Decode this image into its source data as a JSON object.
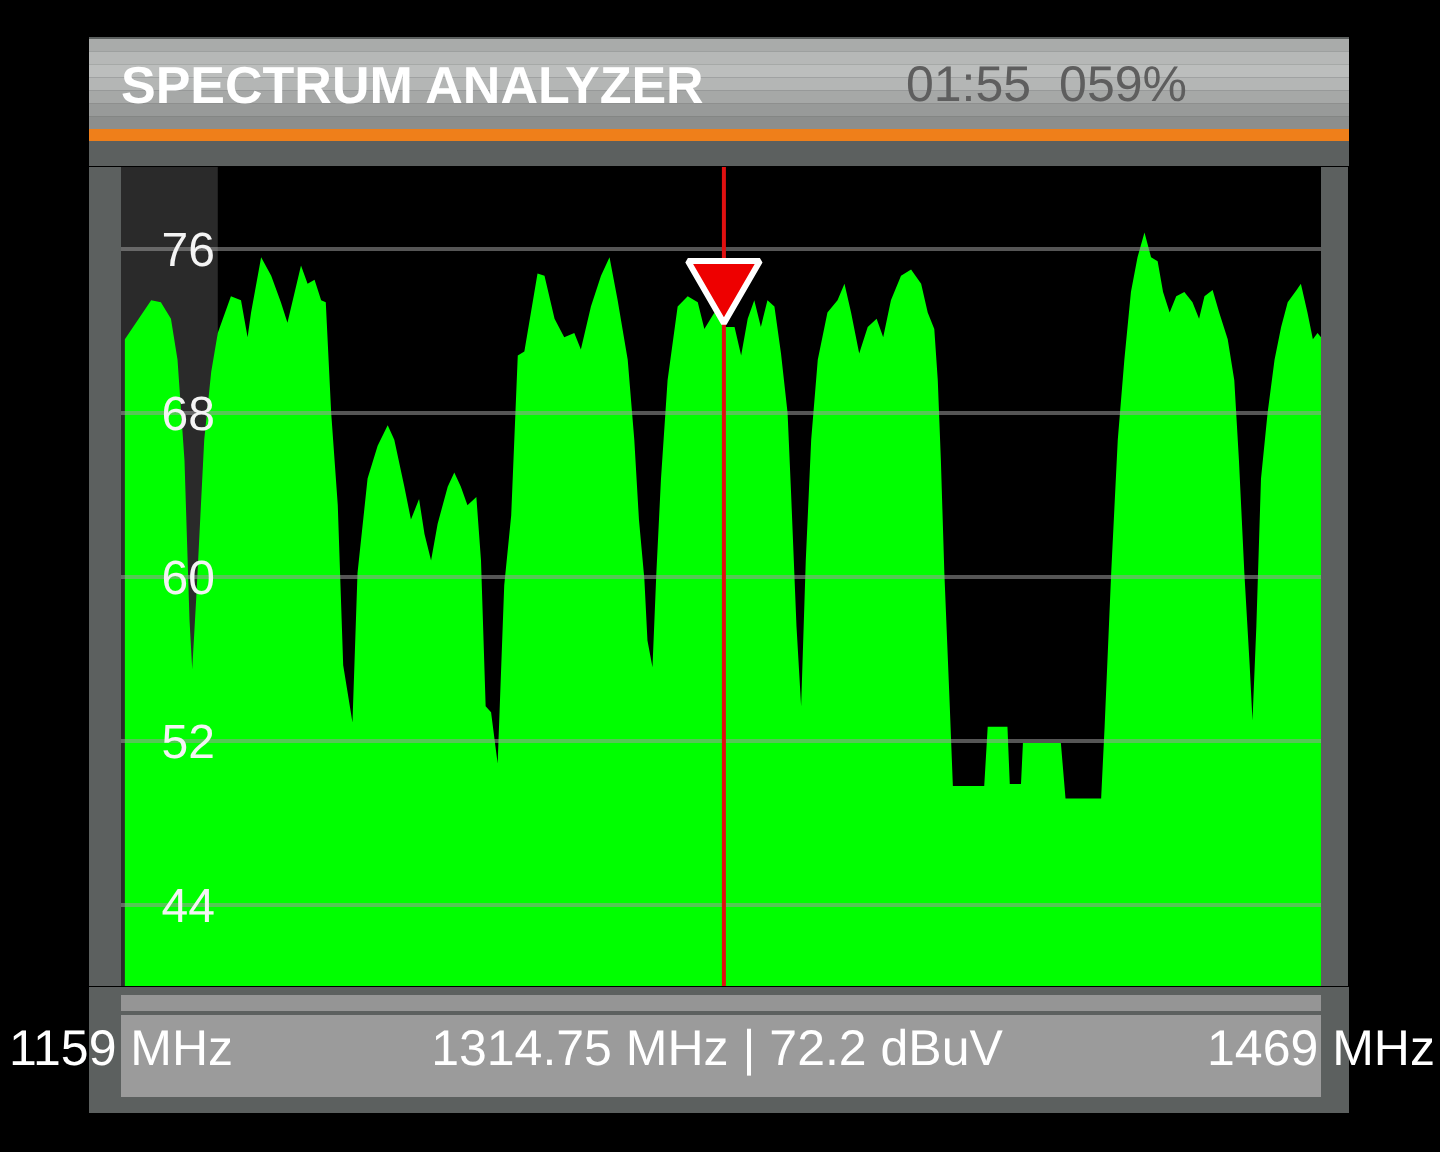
{
  "chart_data": {
    "type": "area",
    "title": "SPECTRUM ANALYZER",
    "annotations": [
      "01:55",
      "059%",
      "1314.75 MHz | 72.2 dBuV"
    ],
    "x": [
      1160.0,
      1166.8,
      1169.3,
      1171.9,
      1173.6,
      1175.4,
      1176.7,
      1177.4,
      1178.5,
      1180.5,
      1182.3,
      1184.0,
      1187.4,
      1190.0,
      1191.7,
      1192.6,
      1195.2,
      1197.8,
      1200.3,
      1202.0,
      1205.5,
      1207.2,
      1209.0,
      1210.7,
      1211.9,
      1213.3,
      1215.0,
      1216.4,
      1218.8,
      1220.1,
      1222.7,
      1225.3,
      1227.9,
      1229.6,
      1232.2,
      1233.9,
      1236.0,
      1237.4,
      1239.1,
      1240.8,
      1243.4,
      1245.1,
      1246.8,
      1248.5,
      1250.8,
      1252.0,
      1253.2,
      1254.6,
      1256.3,
      1258.0,
      1259.8,
      1261.5,
      1263.2,
      1266.6,
      1268.4,
      1271.0,
      1273.5,
      1276.1,
      1277.8,
      1280.4,
      1283.0,
      1285.2,
      1287.3,
      1289.9,
      1291.6,
      1292.8,
      1294.2,
      1295.0,
      1296.3,
      1297.3,
      1298.5,
      1300.2,
      1302.8,
      1305.4,
      1308.0,
      1309.7,
      1312.3,
      1314.75,
      1317.5,
      1319.2,
      1320.9,
      1322.6,
      1324.3,
      1326.0,
      1327.8,
      1329.5,
      1331.2,
      1332.1,
      1333.5,
      1334.7,
      1335.9,
      1337.3,
      1339.0,
      1341.5,
      1344.1,
      1345.9,
      1347.6,
      1349.7,
      1351.9,
      1354.2,
      1355.9,
      1357.9,
      1360.5,
      1363.1,
      1365.7,
      1367.4,
      1369.1,
      1370.0,
      1370.8,
      1371.7,
      1373.1,
      1373.9,
      1382.0,
      1382.9,
      1388.0,
      1388.6,
      1391.5,
      1392.0,
      1401.8,
      1403.0,
      1412.2,
      1413.1,
      1414.8,
      1416.5,
      1418.2,
      1419.9,
      1421.6,
      1423.4,
      1425.1,
      1426.8,
      1428.2,
      1429.9,
      1431.6,
      1433.7,
      1435.8,
      1437.5,
      1438.9,
      1441.0,
      1442.7,
      1444.9,
      1446.6,
      1447.8,
      1449.2,
      1450.6,
      1451.3,
      1452.3,
      1453.5,
      1455.2,
      1457.0,
      1458.7,
      1460.4,
      1462.7,
      1463.8,
      1465.5,
      1466.9,
      1468.1,
      1469.0
    ],
    "series": [
      {
        "color": "#00ff00",
        "values": [
          71.6,
          73.5,
          73.4,
          72.6,
          70.6,
          65.7,
          57.9,
          55.5,
          59.2,
          66.7,
          70.0,
          71.9,
          73.7,
          73.5,
          71.7,
          72.9,
          75.6,
          74.7,
          73.4,
          72.4,
          75.2,
          74.3,
          74.5,
          73.5,
          73.4,
          68.0,
          63.5,
          55.7,
          52.9,
          60.2,
          64.8,
          66.4,
          67.4,
          66.7,
          64.4,
          62.8,
          63.8,
          62.1,
          60.8,
          62.6,
          64.4,
          65.1,
          64.4,
          63.5,
          63.9,
          60.8,
          53.7,
          53.4,
          50.9,
          59.6,
          63.0,
          70.8,
          71.0,
          74.8,
          74.7,
          72.6,
          71.7,
          71.9,
          71.1,
          73.2,
          74.7,
          75.6,
          73.5,
          70.6,
          66.7,
          62.8,
          59.9,
          56.9,
          55.6,
          60.2,
          64.8,
          69.6,
          73.2,
          73.7,
          73.4,
          72.1,
          72.9,
          72.2,
          72.2,
          70.8,
          72.6,
          73.5,
          72.2,
          73.5,
          73.2,
          70.9,
          68.0,
          64.1,
          57.6,
          53.7,
          60.8,
          66.7,
          70.6,
          72.9,
          73.5,
          74.3,
          72.9,
          70.9,
          72.2,
          72.6,
          71.7,
          73.5,
          74.7,
          75.0,
          74.3,
          72.9,
          72.1,
          69.6,
          65.7,
          60.2,
          53.7,
          49.8,
          49.8,
          52.7,
          52.7,
          49.9,
          49.9,
          51.9,
          51.9,
          49.2,
          49.2,
          52.7,
          60.2,
          66.7,
          70.6,
          73.9,
          75.6,
          76.8,
          75.6,
          75.4,
          73.9,
          72.9,
          73.7,
          73.9,
          73.4,
          72.6,
          73.7,
          74.0,
          72.9,
          71.6,
          69.6,
          65.7,
          60.2,
          55.6,
          53.0,
          57.6,
          64.8,
          68.0,
          70.6,
          72.2,
          73.4,
          74.0,
          74.3,
          72.9,
          71.6,
          71.9,
          71.7
        ]
      },
      {
        "type": "scatter",
        "color": "#ee0000",
        "marker": "triangle",
        "x": [
          1314.75
        ],
        "values": [
          74.4
        ]
      }
    ],
    "xlim": [
      1159,
      1469
    ],
    "xticks": [
      {
        "value": 1159,
        "label": "1159 MHz"
      },
      {
        "value": 1469,
        "label": "1469 MHz"
      }
    ],
    "ylim": [
      40,
      80
    ],
    "yticks": [
      44,
      52,
      60,
      68,
      76
    ],
    "grid": "y",
    "bands": [
      {
        "axis": "x",
        "from": 1159,
        "to": 1184,
        "color": "#464646"
      }
    ],
    "ref_lines": [
      {
        "axis": "x",
        "value": 1314.75,
        "color": "#e01010"
      }
    ]
  }
}
